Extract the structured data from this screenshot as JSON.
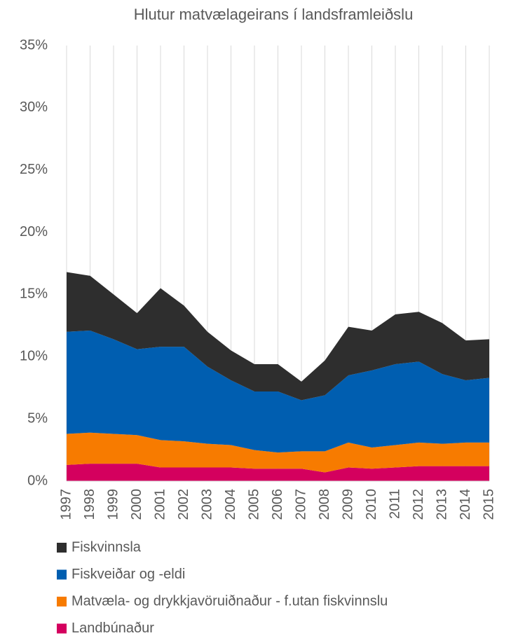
{
  "chart_data": {
    "type": "stacked_area",
    "title": "Hlutur matvælageirans í landsframleiðslu",
    "categories": [
      "1997",
      "1998",
      "1999",
      "2000",
      "2001",
      "2002",
      "2003",
      "2004",
      "2005",
      "2006",
      "2007",
      "2008",
      "2009",
      "2010",
      "2011",
      "2012",
      "2013",
      "2014",
      "2015"
    ],
    "series": [
      {
        "name": "Landbúnaður",
        "color": "#d4005e",
        "values": [
          1.3,
          1.4,
          1.4,
          1.4,
          1.1,
          1.1,
          1.1,
          1.1,
          1.0,
          1.0,
          1.0,
          0.7,
          1.1,
          1.0,
          1.1,
          1.2,
          1.2,
          1.2,
          1.2
        ]
      },
      {
        "name": "Matvæla- og drykkjavöruiðnaður - f.utan fiskvinnslu",
        "color": "#f77b00",
        "values": [
          2.5,
          2.5,
          2.4,
          2.3,
          2.2,
          2.1,
          1.9,
          1.8,
          1.5,
          1.3,
          1.4,
          1.7,
          2.0,
          1.7,
          1.8,
          1.9,
          1.8,
          1.9,
          1.9
        ]
      },
      {
        "name": "Fiskveiðar og -eldi",
        "color": "#005eb0",
        "values": [
          8.2,
          8.2,
          7.6,
          6.9,
          7.5,
          7.6,
          6.2,
          5.2,
          4.7,
          4.9,
          4.1,
          4.5,
          5.4,
          6.2,
          6.5,
          6.5,
          5.6,
          5.0,
          5.2
        ]
      },
      {
        "name": "Fiskvinnsla",
        "color": "#2e2e2e",
        "values": [
          4.8,
          4.4,
          3.6,
          2.9,
          4.7,
          3.3,
          2.8,
          2.4,
          2.2,
          2.2,
          1.5,
          2.8,
          3.9,
          3.2,
          4.0,
          4.0,
          4.1,
          3.2,
          3.1
        ]
      }
    ],
    "ylim": [
      0,
      35
    ],
    "yticks": [
      {
        "value": 0,
        "label": "0%"
      },
      {
        "value": 5,
        "label": "5%"
      },
      {
        "value": 10,
        "label": "10%"
      },
      {
        "value": 15,
        "label": "15%"
      },
      {
        "value": 20,
        "label": "20%"
      },
      {
        "value": 25,
        "label": "25%"
      },
      {
        "value": 30,
        "label": "30%"
      },
      {
        "value": 35,
        "label": "35%"
      }
    ],
    "grid": "x",
    "legend": "bottom"
  }
}
